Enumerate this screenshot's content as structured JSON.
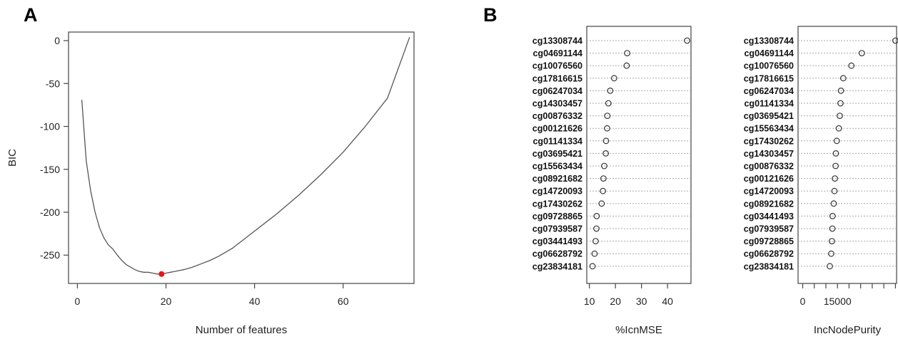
{
  "panels": {
    "a_label": "A",
    "b_label": "B"
  },
  "colors": {
    "line": "#555555",
    "axis": "#444444",
    "highlight": "#e8141b",
    "dotted": "#aaaaaa"
  },
  "chart_data": [
    {
      "type": "line",
      "panel": "A",
      "title": "",
      "xlabel": "Number of features",
      "ylabel": "BIC",
      "xlim": [
        -2,
        76
      ],
      "ylim": [
        -283,
        10
      ],
      "xticks": [
        0,
        20,
        40,
        60
      ],
      "yticks": [
        0,
        -50,
        -100,
        -150,
        -200,
        -250
      ],
      "grid": false,
      "series": [
        {
          "x": [
            1,
            2,
            3,
            4,
            5,
            6,
            7,
            8,
            9,
            10,
            11,
            12,
            13,
            14,
            15,
            16,
            17,
            18,
            19,
            20,
            21,
            22,
            23,
            24,
            26,
            28,
            30,
            32,
            35,
            38,
            40,
            45,
            50,
            55,
            60,
            65,
            70,
            75
          ],
          "y": [
            -69,
            -140,
            -175,
            -200,
            -218,
            -230,
            -238,
            -243,
            -250,
            -256,
            -261,
            -264,
            -267,
            -269,
            -270,
            -270,
            -271,
            -272,
            -272,
            -271,
            -270,
            -269,
            -268,
            -267,
            -264,
            -260,
            -256,
            -251,
            -242,
            -230,
            -222,
            -202,
            -180,
            -156,
            -130,
            -100,
            -67,
            4
          ]
        }
      ],
      "highlight_point": {
        "x": 19,
        "y": -272
      }
    },
    {
      "type": "scatter",
      "panel": "B-left",
      "xlabel": "%IcnMSE",
      "xlim": [
        9,
        49
      ],
      "xticks": [
        10,
        20,
        30,
        40
      ],
      "categories": [
        "cg13308744",
        "cg04691144",
        "cg10076560",
        "cg17816615",
        "cg06247034",
        "cg14303457",
        "cg00876332",
        "cg00121626",
        "cg01141334",
        "cg03695421",
        "cg15563434",
        "cg08921682",
        "cg14720093",
        "cg17430262",
        "cg09728865",
        "cg07939587",
        "cg03441493",
        "cg06628792",
        "cg23834181"
      ],
      "values": [
        47.5,
        24.5,
        24.3,
        19.5,
        18.0,
        17.3,
        16.9,
        16.8,
        16.4,
        16.3,
        15.7,
        15.4,
        15.2,
        14.7,
        12.8,
        12.7,
        12.4,
        12.0,
        11.2
      ]
    },
    {
      "type": "scatter",
      "panel": "B-right",
      "xlabel": "IncNodePurity",
      "xlim": [
        -2000,
        40500
      ],
      "xticks": [
        0,
        5000,
        10000,
        15000,
        20000,
        25000,
        30000,
        35000,
        40000
      ],
      "xtick_labels": [
        "0",
        "",
        "",
        "15000",
        "",
        "",
        "",
        "",
        ""
      ],
      "categories": [
        "cg13308744",
        "cg04691144",
        "cg10076560",
        "cg17816615",
        "cg06247034",
        "cg01141334",
        "cg03695421",
        "cg15563434",
        "cg17430262",
        "cg14303457",
        "cg00876332",
        "cg00121626",
        "cg14720093",
        "cg08921682",
        "cg03441493",
        "cg07939587",
        "cg09728865",
        "cg06628792",
        "cg23834181"
      ],
      "values": [
        40000,
        25500,
        21000,
        17500,
        16500,
        16300,
        16000,
        15600,
        14700,
        14300,
        14200,
        13900,
        13700,
        13400,
        12900,
        12800,
        12600,
        12300,
        11700
      ]
    }
  ]
}
